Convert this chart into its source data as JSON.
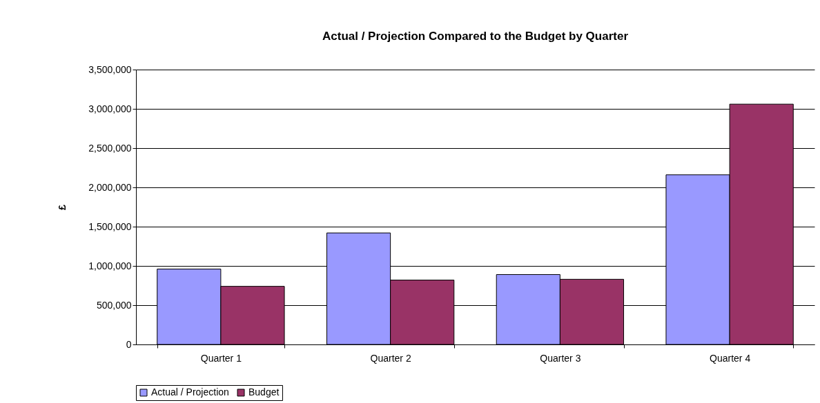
{
  "chart_data": {
    "type": "bar",
    "title": "Actual / Projection Compared to the Budget by Quarter",
    "ylabel": "£",
    "categories": [
      "Quarter 1",
      "Quarter 2",
      "Quarter 3",
      "Quarter 4"
    ],
    "series": [
      {
        "name": "Actual / Projection",
        "color": "#9999ff",
        "values": [
          960000,
          1420000,
          890000,
          2160000
        ]
      },
      {
        "name": "Budget",
        "color": "#993366",
        "values": [
          740000,
          820000,
          830000,
          3060000
        ]
      }
    ],
    "ylim": [
      0,
      3500000
    ],
    "yticks": [
      {
        "value": 0,
        "label": "0"
      },
      {
        "value": 500000,
        "label": "500,000"
      },
      {
        "value": 1000000,
        "label": "1,000,000"
      },
      {
        "value": 1500000,
        "label": "1,500,000"
      },
      {
        "value": 2000000,
        "label": "2,000,000"
      },
      {
        "value": 2500000,
        "label": "2,500,000"
      },
      {
        "value": 3000000,
        "label": "3,000,000"
      },
      {
        "value": 3500000,
        "label": "3,500,000"
      }
    ],
    "grid": "y",
    "legend": "bottom"
  }
}
